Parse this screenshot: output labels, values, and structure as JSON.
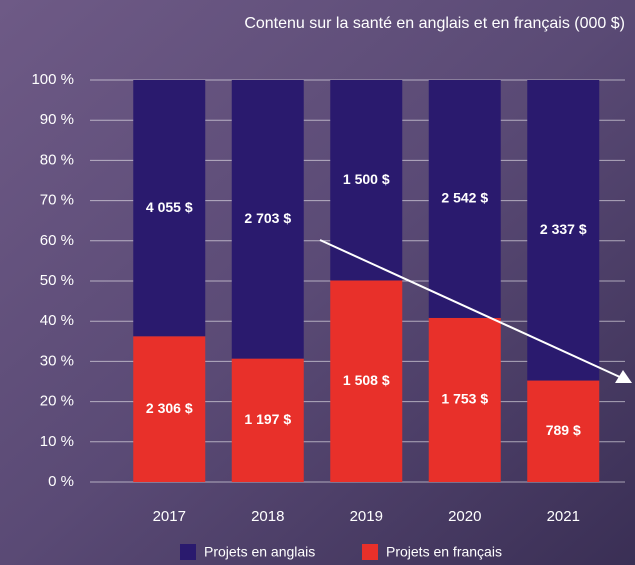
{
  "chart_data": {
    "type": "percent_stacked_bar",
    "title": "Contenu sur la santé en anglais et en français (000 $)",
    "categories": [
      "2017",
      "2018",
      "2019",
      "2020",
      "2021"
    ],
    "series": [
      {
        "name": "Projets en français",
        "color": "#e8302a",
        "values": [
          2306,
          1197,
          1508,
          1753,
          789
        ],
        "value_labels": [
          "2 306 $",
          "1 197 $",
          "1 508 $",
          "1 753 $",
          "789 $"
        ]
      },
      {
        "name": "Projets en anglais",
        "color": "#2a1a6e",
        "values": [
          4055,
          2703,
          1500,
          2542,
          2337
        ],
        "value_labels": [
          "4 055 $",
          "2 703 $",
          "1 500 $",
          "2 542 $",
          "2 337 $"
        ]
      }
    ],
    "ylim": [
      0,
      100
    ],
    "yticks": [
      {
        "value": 0,
        "label": "0 %"
      },
      {
        "value": 10,
        "label": "10 %"
      },
      {
        "value": 20,
        "label": "20 %"
      },
      {
        "value": 30,
        "label": "30 %"
      },
      {
        "value": 40,
        "label": "40 %"
      },
      {
        "value": 50,
        "label": "50 %"
      },
      {
        "value": 60,
        "label": "60 %"
      },
      {
        "value": 70,
        "label": "70 %"
      },
      {
        "value": 80,
        "label": "80 %"
      },
      {
        "value": 90,
        "label": "90 %"
      },
      {
        "value": 100,
        "label": "100 %"
      }
    ],
    "grid": true
  }
}
